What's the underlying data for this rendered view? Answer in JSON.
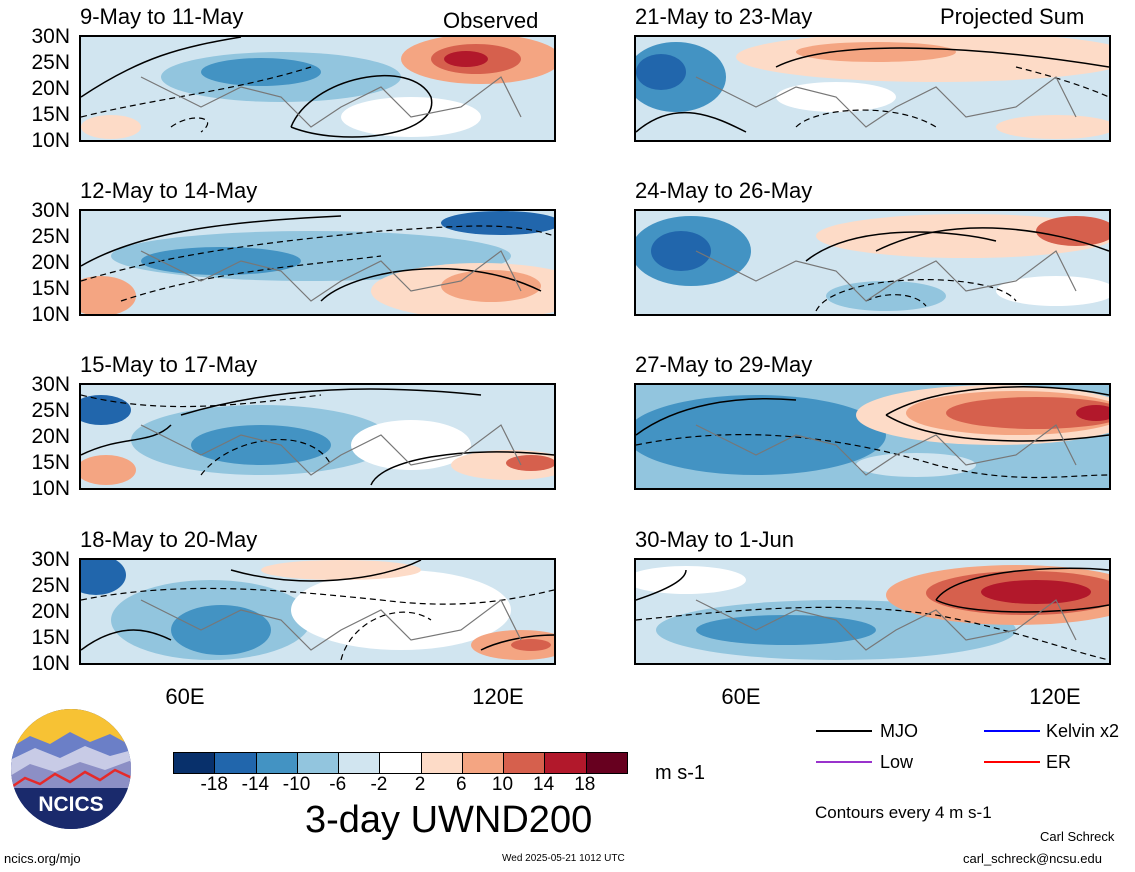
{
  "header": {
    "observed_label": "Observed",
    "projected_label": "Projected Sum"
  },
  "panels_left": [
    {
      "title": "9-May to 11-May"
    },
    {
      "title": "12-May to 14-May"
    },
    {
      "title": "15-May to 17-May"
    },
    {
      "title": "18-May to 20-May"
    }
  ],
  "panels_right": [
    {
      "title": "21-May to 23-May"
    },
    {
      "title": "24-May to 26-May"
    },
    {
      "title": "27-May to 29-May"
    },
    {
      "title": "30-May to 1-Jun"
    }
  ],
  "lat_labels": [
    "30N",
    "25N",
    "20N",
    "15N",
    "10N"
  ],
  "lon_labels": [
    "60E",
    "120E"
  ],
  "colorbar": {
    "ticks": [
      "-18",
      "-14",
      "-10",
      "-6",
      "-2",
      "2",
      "6",
      "10",
      "14",
      "18"
    ],
    "colors": [
      "#08306b",
      "#2166ac",
      "#4393c3",
      "#92c5de",
      "#d1e5f0",
      "#ffffff",
      "#fddbc7",
      "#f4a582",
      "#d6604d",
      "#b2182b",
      "#67001f"
    ],
    "units": "m s-1"
  },
  "main_title": "3-day UWND200",
  "legend": {
    "mjo": "MJO",
    "kelvin": "Kelvin x2",
    "low": "Low",
    "er": "ER",
    "mjo_color": "#000000",
    "kelvin_color": "#0000ff",
    "low_color": "#9933cc",
    "er_color": "#ff0000"
  },
  "contour_note": "Contours every 4 m s-1",
  "logo_text": "NCICS",
  "footer": {
    "url": "ncics.org/mjo",
    "timestamp": "Wed 2025-05-21 1012 UTC",
    "author": "Carl Schreck",
    "email": "carl_schreck@ncsu.edu"
  }
}
